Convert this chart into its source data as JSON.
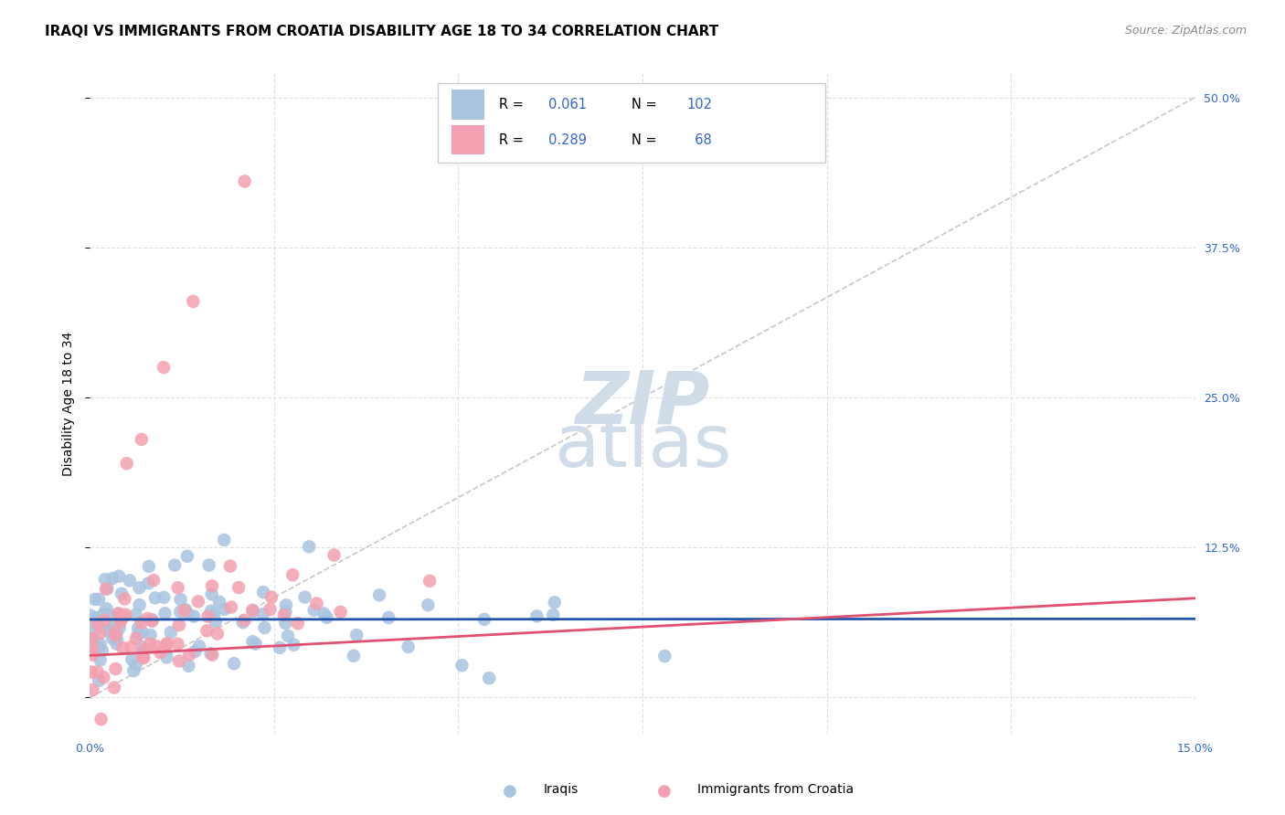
{
  "title": "IRAQI VS IMMIGRANTS FROM CROATIA DISABILITY AGE 18 TO 34 CORRELATION CHART",
  "source": "Source: ZipAtlas.com",
  "ylabel_label": "Disability Age 18 to 34",
  "xmin": 0.0,
  "xmax": 0.15,
  "ymin": -0.03,
  "ymax": 0.52,
  "iraqis_R": 0.061,
  "iraqis_N": 102,
  "croatia_R": 0.289,
  "croatia_N": 68,
  "iraqis_color": "#a8c4e0",
  "croatia_color": "#f4a0b0",
  "iraqis_line_color": "#2255aa",
  "croatia_line_color": "#e05070",
  "diagonal_color": "#c8c8c8",
  "watermark_color": "#d0dce8",
  "title_fontsize": 11,
  "source_fontsize": 9,
  "axis_label_fontsize": 10,
  "tick_fontsize": 9,
  "legend_fontsize": 10,
  "stat_color_blue": "#3366cc",
  "stat_color_pink": "#e05070"
}
